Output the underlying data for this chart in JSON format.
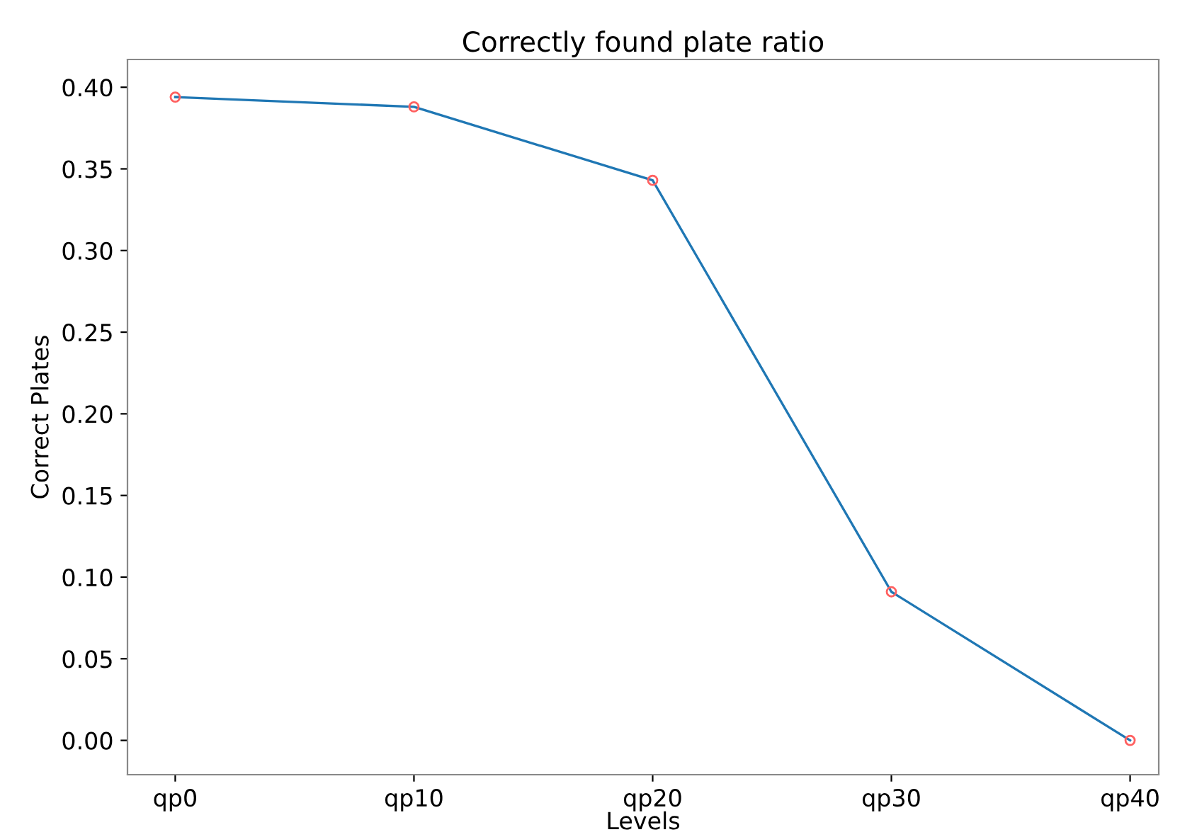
{
  "chart_data": {
    "type": "line",
    "title": "Correctly found plate ratio",
    "xlabel": "Levels",
    "ylabel": "Correct Plates",
    "categories": [
      "qp0",
      "qp10",
      "qp20",
      "qp30",
      "qp40"
    ],
    "series": [
      {
        "color": "#1f77b4",
        "values": [
          0.394,
          0.388,
          0.343,
          0.091,
          0.0
        ]
      },
      {
        "type": "scatter",
        "color": "#ff6060",
        "marker": "circle",
        "values": [
          0.394,
          0.388,
          0.343,
          0.091,
          0.0
        ]
      }
    ],
    "ylim": [
      -0.021,
      0.417
    ],
    "yticks": [
      {
        "value": 0.0,
        "label": "0.00"
      },
      {
        "value": 0.05,
        "label": "0.05"
      },
      {
        "value": 0.1,
        "label": "0.10"
      },
      {
        "value": 0.15,
        "label": "0.15"
      },
      {
        "value": 0.2,
        "label": "0.20"
      },
      {
        "value": 0.25,
        "label": "0.25"
      },
      {
        "value": 0.3,
        "label": "0.30"
      },
      {
        "value": 0.35,
        "label": "0.35"
      },
      {
        "value": 0.4,
        "label": "0.40"
      }
    ],
    "grid": false
  }
}
